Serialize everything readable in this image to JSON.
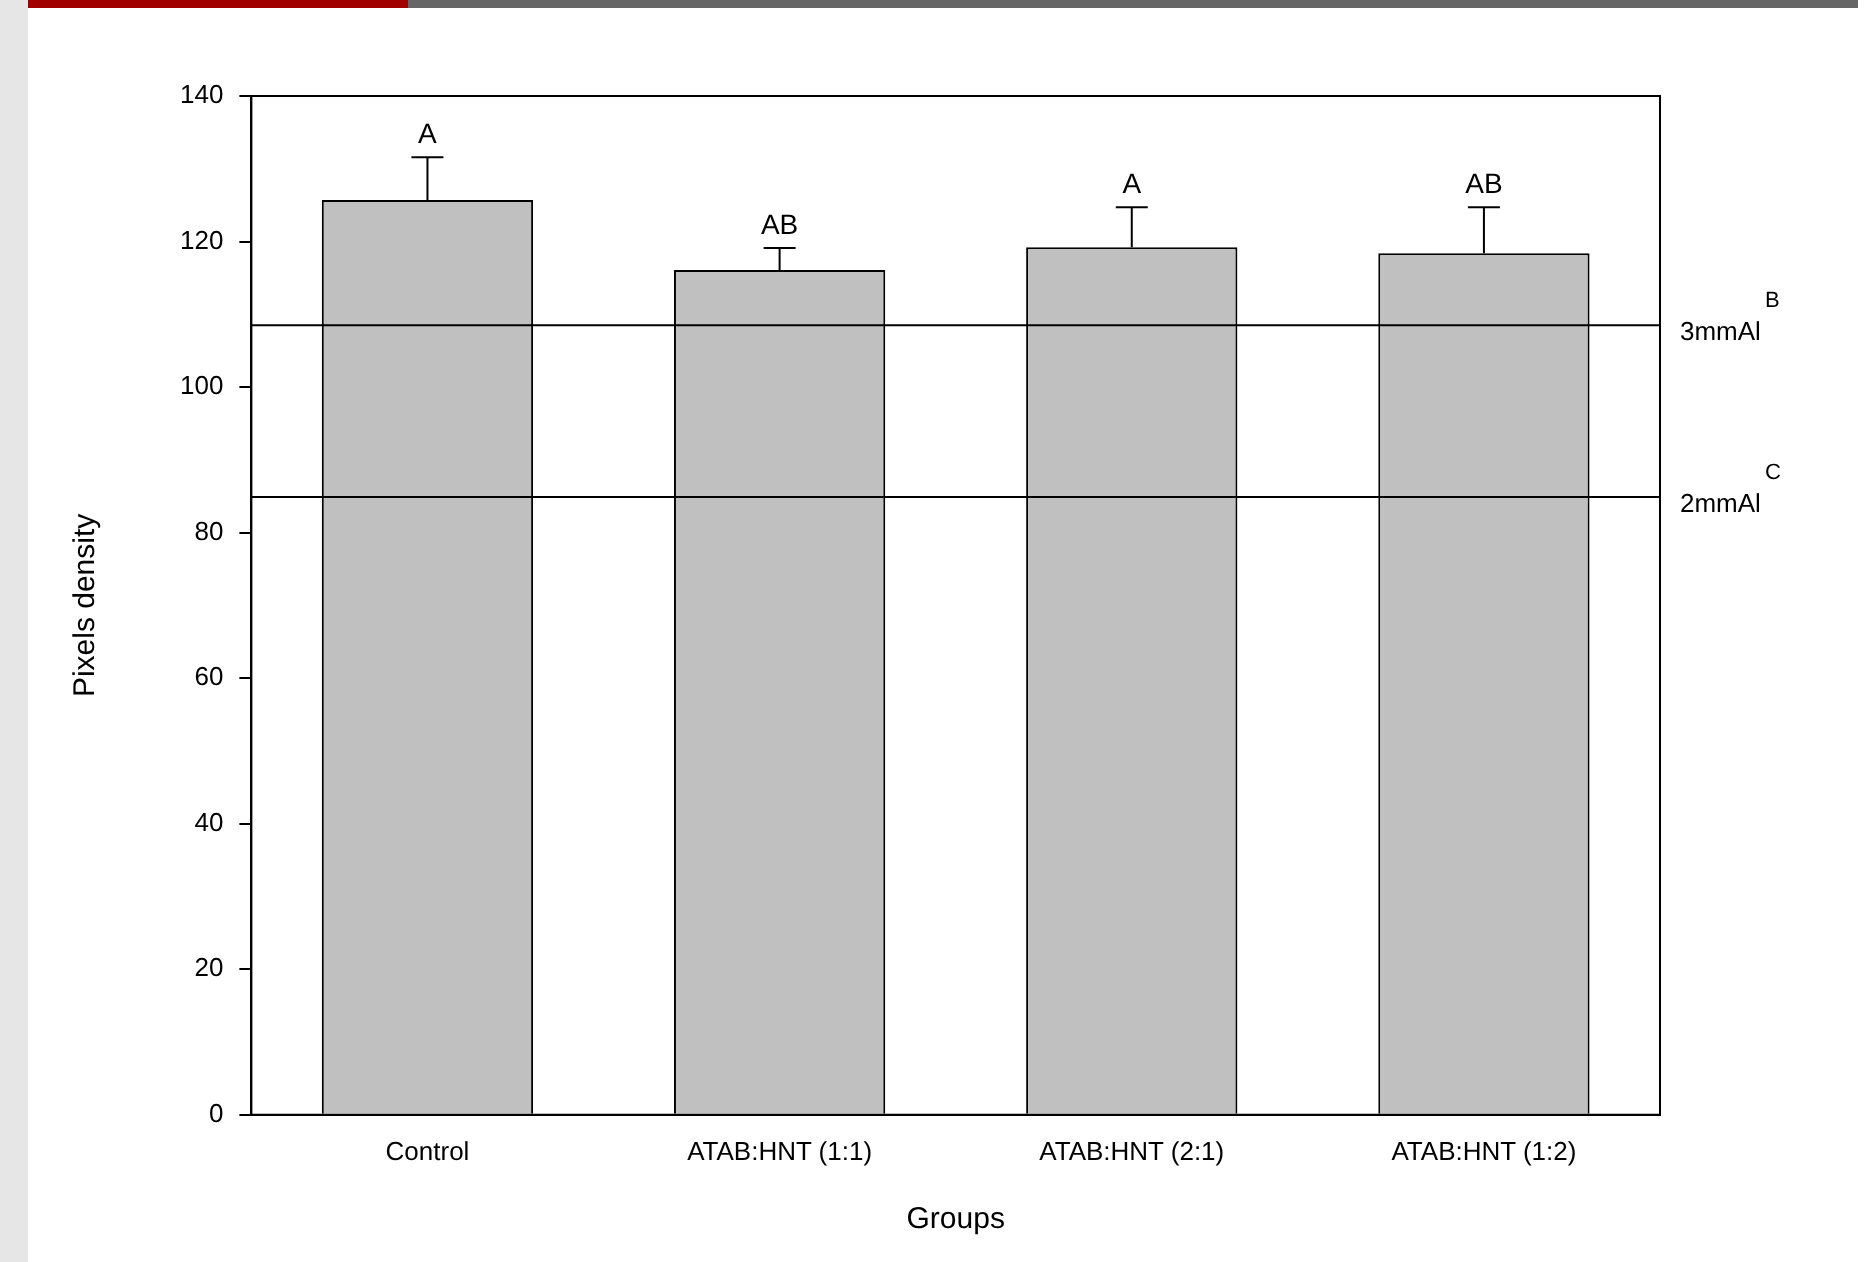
{
  "chart_data": {
    "type": "bar",
    "xlabel": "Groups",
    "ylabel": "Pixels density",
    "categories": [
      "Control",
      "ATAB:HNT (1:1)",
      "ATAB:HNT (2:1)",
      "ATAB:HNT (1:2)"
    ],
    "values": [
      125.7,
      116.1,
      119.2,
      118.4
    ],
    "errors": [
      [
        125.7,
        131.6
      ],
      [
        116.1,
        119.1
      ],
      [
        119.2,
        124.7
      ],
      [
        118.4,
        124.7
      ]
    ],
    "color": "#c0c0c0",
    "ylim": [
      0,
      140
    ],
    "yticks": [
      0,
      20,
      40,
      60,
      80,
      100,
      120,
      140
    ],
    "ref_lines": [
      {
        "axis": "y",
        "value": 108.5,
        "label": "3mmAl$^{B}$",
        "color": "#000000"
      },
      {
        "axis": "y",
        "value": 84.9,
        "label": "2mmAl$^{C}$",
        "color": "#000000"
      }
    ],
    "annotations": [
      {
        "text": "A",
        "x": "Control",
        "y": 131.6
      },
      {
        "text": "AB",
        "x": "ATAB:HNT (1:1)",
        "y": 119.1
      },
      {
        "text": "A",
        "x": "ATAB:HNT (2:1)",
        "y": 124.7
      },
      {
        "text": "AB",
        "x": "ATAB:HNT (1:2)",
        "y": 124.7
      }
    ]
  }
}
